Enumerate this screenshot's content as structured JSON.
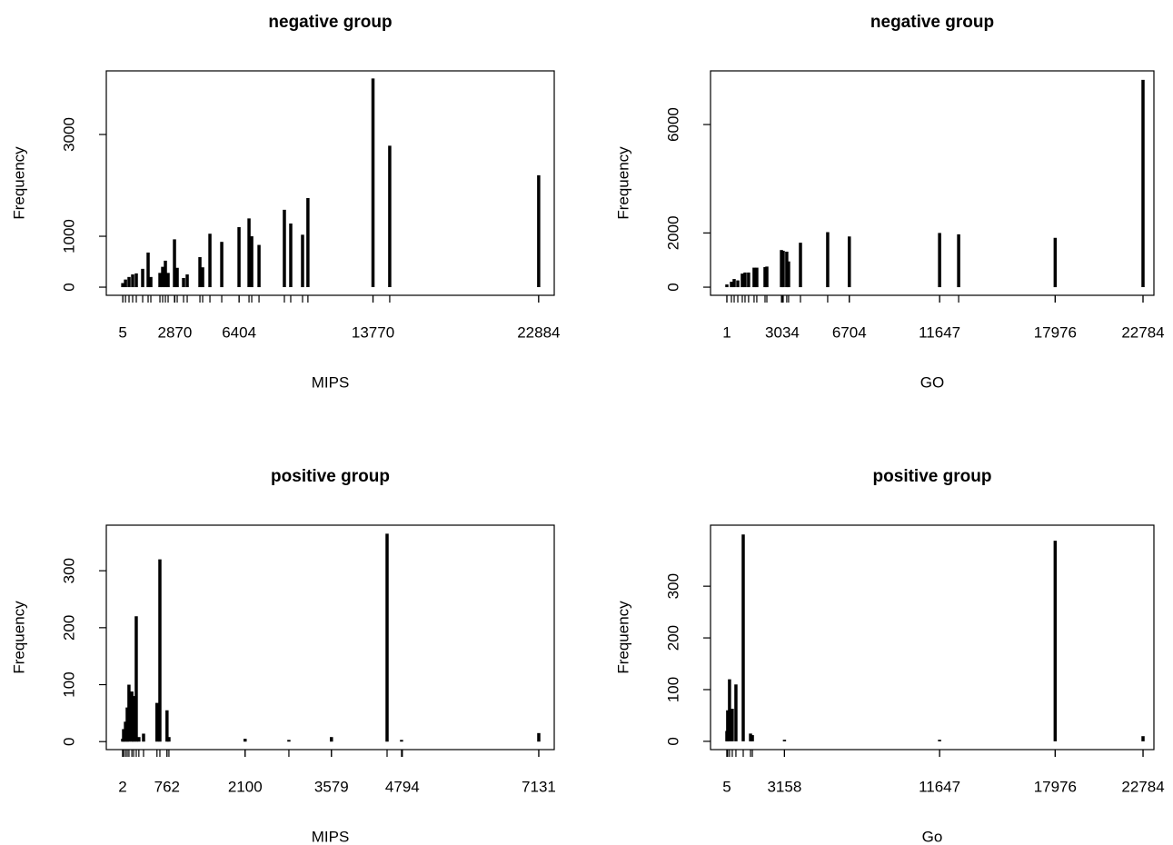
{
  "chart_data": [
    {
      "type": "bar",
      "title": "negative group",
      "xlabel": "MIPS",
      "ylabel": "Frequency",
      "x": [
        5,
        155,
        350,
        550,
        750,
        1100,
        1400,
        1550,
        2050,
        2200,
        2350,
        2500,
        2850,
        3000,
        3350,
        3550,
        4250,
        4400,
        4800,
        5450,
        6400,
        6950,
        7100,
        7500,
        8895,
        9245,
        9895,
        10190,
        13770,
        14690,
        22884
      ],
      "values": [
        80,
        150,
        200,
        250,
        270,
        360,
        680,
        200,
        280,
        400,
        520,
        280,
        940,
        380,
        180,
        250,
        590,
        390,
        1050,
        890,
        1180,
        1350,
        1000,
        830,
        1520,
        1250,
        1030,
        1750,
        4100,
        2780,
        2200
      ],
      "color": "#000000",
      "xlim": [
        -900,
        23740
      ],
      "ylim": [
        -160,
        4250
      ],
      "xticks": [
        5,
        2870,
        6404,
        13770,
        22884
      ],
      "yticks": [
        0,
        1000,
        3000
      ]
    },
    {
      "type": "bar",
      "title": "negative group",
      "xlabel": "GO",
      "ylabel": "Frequency",
      "x": [
        1,
        250,
        400,
        600,
        845,
        995,
        1190,
        1490,
        1640,
        2090,
        2190,
        2990,
        3085,
        3280,
        3380,
        4030,
        5520,
        6704,
        11647,
        12690,
        17976,
        22784
      ],
      "values": [
        100,
        200,
        300,
        250,
        500,
        540,
        540,
        720,
        720,
        740,
        760,
        1370,
        1340,
        1310,
        950,
        1640,
        2030,
        1870,
        2000,
        1950,
        1820,
        7650
      ],
      "color": "#000000",
      "xlim": [
        -894,
        23381
      ],
      "ylim": [
        -300,
        7980
      ],
      "xticks": [
        1,
        3034,
        6704,
        11647,
        17976,
        22784
      ],
      "yticks": [
        0,
        2000,
        6000
      ]
    },
    {
      "type": "bar",
      "title": "positive group",
      "xlabel": "MIPS",
      "ylabel": "Frequency",
      "x": [
        2,
        18,
        50,
        80,
        110,
        160,
        190,
        235,
        280,
        360,
        590,
        640,
        762,
        795,
        2100,
        2850,
        3579,
        4532,
        4780,
        7131
      ],
      "values": [
        5,
        22,
        35,
        60,
        100,
        88,
        80,
        220,
        8,
        14,
        68,
        320,
        55,
        8,
        5,
        3,
        8,
        365,
        3,
        15
      ],
      "color": "#000000",
      "xlim": [
        -278,
        7396
      ],
      "ylim": [
        -14,
        380
      ],
      "xticks": [
        2,
        762,
        2100,
        3579,
        4794,
        7131
      ],
      "yticks": [
        0,
        100,
        200,
        300
      ]
    },
    {
      "type": "bar",
      "title": "positive group",
      "xlabel": "Go",
      "ylabel": "Frequency",
      "x": [
        5,
        50,
        150,
        300,
        500,
        900,
        1300,
        1400,
        3158,
        11647,
        17976,
        22784
      ],
      "values": [
        20,
        60,
        120,
        63,
        110,
        400,
        15,
        12,
        3,
        3,
        388,
        10
      ],
      "color": "#000000",
      "xlim": [
        -890,
        23380
      ],
      "ylim": [
        -16,
        418
      ],
      "xticks": [
        5,
        3158,
        11647,
        17976,
        22784
      ],
      "yticks": [
        0,
        100,
        200,
        300
      ]
    }
  ]
}
